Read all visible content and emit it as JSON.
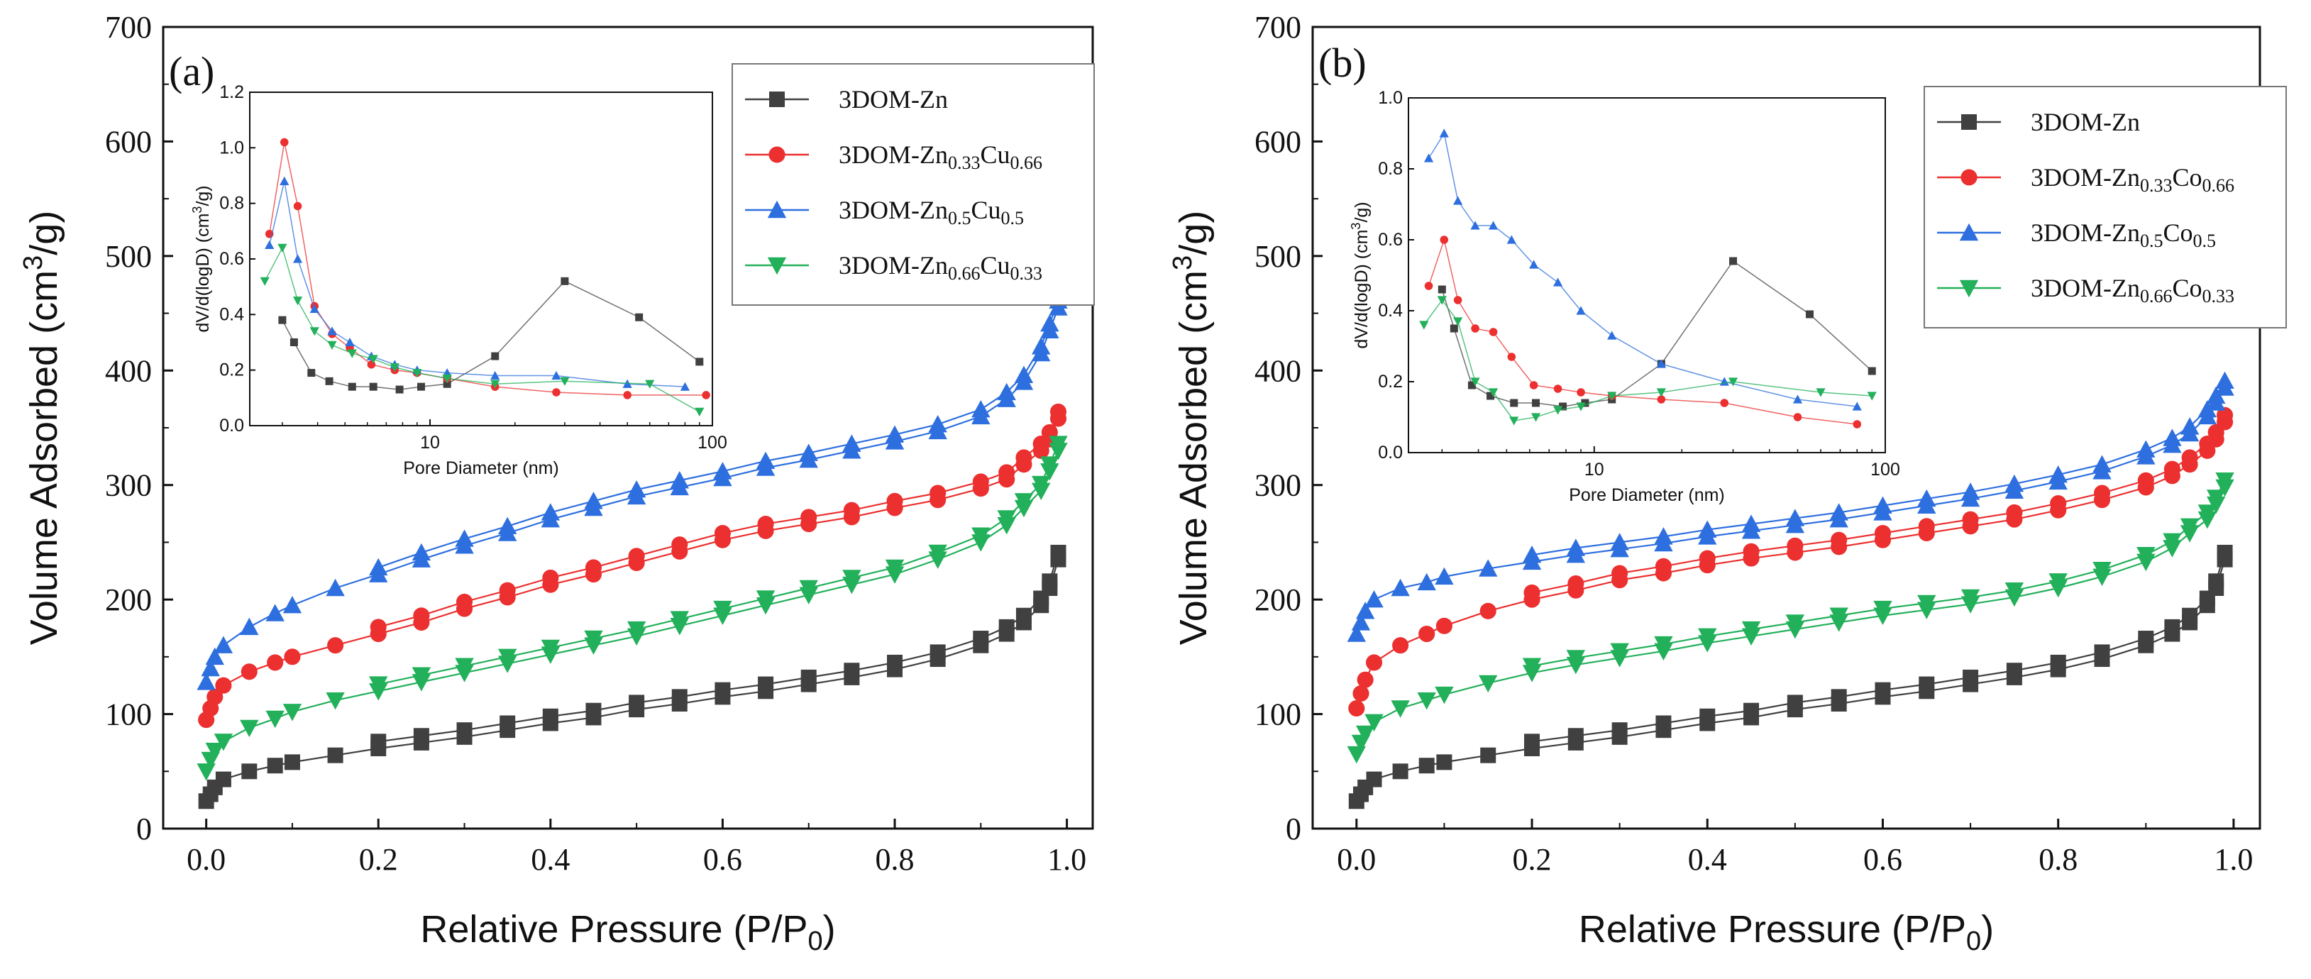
{
  "chart_data": [
    {
      "type": "line",
      "panel_label": "(a)",
      "xlabel": "Relative Pressure (P/P",
      "xlabel_sub": "0",
      "xlabel_end": ")",
      "ylabel": "Volume Adsorbed (cm",
      "ylabel_sup": "3",
      "ylabel_end": "/g)",
      "xlim": [
        -0.05,
        1.03
      ],
      "ylim": [
        0,
        700
      ],
      "xticks": [
        "0.0",
        "0.2",
        "0.4",
        "0.6",
        "0.8",
        "1.0"
      ],
      "yticks": [
        "0",
        "100",
        "200",
        "300",
        "400",
        "500",
        "600",
        "700"
      ],
      "legend_position": "top-right",
      "series": [
        {
          "name": "3DOM-Zn",
          "label_main": "3DOM-Zn",
          "sub1": "",
          "mid": "",
          "sub2": "",
          "color": "#404040",
          "marker": "square",
          "x": [
            0.0,
            0.005,
            0.01,
            0.02,
            0.05,
            0.08,
            0.1,
            0.15,
            0.2,
            0.25,
            0.3,
            0.35,
            0.4,
            0.45,
            0.5,
            0.55,
            0.6,
            0.65,
            0.7,
            0.75,
            0.8,
            0.85,
            0.9,
            0.93,
            0.95,
            0.97,
            0.98,
            0.99
          ],
          "y": [
            24,
            30,
            36,
            43,
            50,
            55,
            58,
            64,
            70,
            75,
            80,
            86,
            92,
            97,
            104,
            109,
            115,
            120,
            126,
            132,
            139,
            148,
            160,
            170,
            180,
            195,
            210,
            235
          ]
        },
        {
          "name": "3DOM-Zn0.33Cu0.66",
          "label_main": "3DOM-Zn",
          "sub1": "0.33",
          "mid": "Cu",
          "sub2": "0.66",
          "color": "#ec2f2f",
          "marker": "circle",
          "x": [
            0.0,
            0.005,
            0.01,
            0.02,
            0.05,
            0.08,
            0.1,
            0.15,
            0.2,
            0.25,
            0.3,
            0.35,
            0.4,
            0.45,
            0.5,
            0.55,
            0.6,
            0.65,
            0.7,
            0.75,
            0.8,
            0.85,
            0.9,
            0.93,
            0.95,
            0.97,
            0.98,
            0.99
          ],
          "y": [
            95,
            105,
            115,
            125,
            137,
            145,
            150,
            160,
            170,
            180,
            192,
            202,
            213,
            222,
            232,
            242,
            252,
            260,
            266,
            272,
            280,
            287,
            297,
            305,
            318,
            330,
            340,
            358
          ]
        },
        {
          "name": "3DOM-Zn0.5Cu0.5",
          "label_main": "3DOM-Zn",
          "sub1": "0.5",
          "mid": "Cu",
          "sub2": "0.5",
          "color": "#2e6fdf",
          "marker": "triangle-up",
          "x": [
            0.0,
            0.005,
            0.01,
            0.02,
            0.05,
            0.08,
            0.1,
            0.15,
            0.2,
            0.25,
            0.3,
            0.35,
            0.4,
            0.45,
            0.5,
            0.55,
            0.6,
            0.65,
            0.7,
            0.75,
            0.8,
            0.85,
            0.9,
            0.93,
            0.95,
            0.97,
            0.98,
            0.99
          ],
          "y": [
            128,
            140,
            150,
            160,
            176,
            188,
            195,
            210,
            222,
            235,
            247,
            258,
            270,
            280,
            290,
            298,
            306,
            315,
            322,
            330,
            338,
            347,
            360,
            375,
            390,
            415,
            435,
            455
          ]
        },
        {
          "name": "3DOM-Zn0.66Cu0.33",
          "label_main": "3DOM-Zn",
          "sub1": "0.66",
          "mid": "Cu",
          "sub2": "0.33",
          "color": "#22b05a",
          "marker": "triangle-down",
          "x": [
            0.0,
            0.005,
            0.01,
            0.02,
            0.05,
            0.08,
            0.1,
            0.15,
            0.2,
            0.25,
            0.3,
            0.35,
            0.4,
            0.45,
            0.5,
            0.55,
            0.6,
            0.65,
            0.7,
            0.75,
            0.8,
            0.85,
            0.9,
            0.93,
            0.95,
            0.97,
            0.98,
            0.99
          ],
          "y": [
            50,
            60,
            68,
            76,
            88,
            96,
            102,
            112,
            120,
            128,
            136,
            144,
            152,
            160,
            168,
            177,
            186,
            195,
            204,
            213,
            222,
            235,
            250,
            265,
            280,
            295,
            312,
            330
          ]
        }
      ],
      "inset": {
        "xlabel": "Pore Diameter (nm)",
        "ylabel": "dV/d(logD) (cm",
        "ylabel_sup": "3",
        "ylabel_end": "/g)",
        "xscale": "log",
        "xlim": [
          2.3,
          100
        ],
        "ylim": [
          0,
          1.2
        ],
        "xticks": [
          "10",
          "100"
        ],
        "yticks": [
          "0.0",
          "0.2",
          "0.4",
          "0.6",
          "0.8",
          "1.0",
          "1.2"
        ],
        "series": [
          {
            "name": "3DOM-Zn",
            "color": "#404040",
            "marker": "square",
            "x": [
              3.0,
              3.3,
              3.8,
              4.4,
              5.3,
              6.3,
              7.8,
              9.3,
              11.5,
              17,
              30,
              55,
              90
            ],
            "y": [
              0.38,
              0.3,
              0.19,
              0.16,
              0.14,
              0.14,
              0.13,
              0.14,
              0.15,
              0.25,
              0.52,
              0.39,
              0.23
            ]
          },
          {
            "name": "3DOM-Zn0.33Cu0.66",
            "color": "#ec2f2f",
            "marker": "circle",
            "x": [
              2.7,
              3.05,
              3.4,
              3.9,
              4.5,
              5.2,
              6.2,
              7.5,
              9,
              11.5,
              17,
              28,
              50,
              95
            ],
            "y": [
              0.69,
              1.02,
              0.79,
              0.43,
              0.33,
              0.28,
              0.22,
              0.2,
              0.19,
              0.17,
              0.14,
              0.12,
              0.11,
              0.11
            ]
          },
          {
            "name": "3DOM-Zn0.5Cu0.5",
            "color": "#2e6fdf",
            "marker": "triangle-up",
            "x": [
              2.7,
              3.05,
              3.4,
              3.9,
              4.5,
              5.2,
              6.2,
              7.5,
              9,
              11.5,
              17,
              28,
              50,
              80
            ],
            "y": [
              0.65,
              0.88,
              0.6,
              0.42,
              0.34,
              0.3,
              0.25,
              0.22,
              0.2,
              0.19,
              0.18,
              0.18,
              0.15,
              0.14
            ]
          },
          {
            "name": "3DOM-Zn0.66Cu0.33",
            "color": "#22b05a",
            "marker": "triangle-down",
            "x": [
              2.6,
              3.0,
              3.4,
              3.9,
              4.5,
              5.3,
              6.3,
              7.5,
              9,
              11.5,
              17,
              30,
              60,
              90
            ],
            "y": [
              0.52,
              0.64,
              0.45,
              0.34,
              0.29,
              0.26,
              0.24,
              0.21,
              0.19,
              0.17,
              0.15,
              0.16,
              0.15,
              0.05
            ]
          }
        ]
      }
    },
    {
      "type": "line",
      "panel_label": "(b)",
      "xlabel": "Relative Pressure (P/P",
      "xlabel_sub": "0",
      "xlabel_end": ")",
      "ylabel": "Volume Adsorbed (cm",
      "ylabel_sup": "3",
      "ylabel_end": "/g)",
      "xlim": [
        -0.05,
        1.03
      ],
      "ylim": [
        0,
        700
      ],
      "xticks": [
        "0.0",
        "0.2",
        "0.4",
        "0.6",
        "0.8",
        "1.0"
      ],
      "yticks": [
        "0",
        "100",
        "200",
        "300",
        "400",
        "500",
        "600",
        "700"
      ],
      "legend_position": "top-right",
      "series": [
        {
          "name": "3DOM-Zn",
          "label_main": "3DOM-Zn",
          "sub1": "",
          "mid": "",
          "sub2": "",
          "color": "#404040",
          "marker": "square",
          "x": [
            0.0,
            0.005,
            0.01,
            0.02,
            0.05,
            0.08,
            0.1,
            0.15,
            0.2,
            0.25,
            0.3,
            0.35,
            0.4,
            0.45,
            0.5,
            0.55,
            0.6,
            0.65,
            0.7,
            0.75,
            0.8,
            0.85,
            0.9,
            0.93,
            0.95,
            0.97,
            0.98,
            0.99
          ],
          "y": [
            24,
            30,
            36,
            43,
            50,
            55,
            58,
            64,
            70,
            75,
            80,
            86,
            92,
            97,
            104,
            109,
            115,
            120,
            126,
            132,
            139,
            148,
            160,
            170,
            180,
            195,
            210,
            235
          ]
        },
        {
          "name": "3DOM-Zn0.33Co0.66",
          "label_main": "3DOM-Zn",
          "sub1": "0.33",
          "mid": "Co",
          "sub2": "0.66",
          "color": "#ec2f2f",
          "marker": "circle",
          "x": [
            0.0,
            0.005,
            0.01,
            0.02,
            0.05,
            0.08,
            0.1,
            0.15,
            0.2,
            0.25,
            0.3,
            0.35,
            0.4,
            0.45,
            0.5,
            0.55,
            0.6,
            0.65,
            0.7,
            0.75,
            0.8,
            0.85,
            0.9,
            0.93,
            0.95,
            0.97,
            0.98,
            0.99
          ],
          "y": [
            105,
            118,
            130,
            145,
            160,
            170,
            177,
            190,
            200,
            208,
            217,
            223,
            230,
            236,
            241,
            246,
            252,
            258,
            264,
            270,
            278,
            287,
            298,
            308,
            318,
            330,
            340,
            355
          ]
        },
        {
          "name": "3DOM-Zn0.5Co0.5",
          "label_main": "3DOM-Zn",
          "sub1": "0.5",
          "mid": "Co",
          "sub2": "0.5",
          "color": "#2e6fdf",
          "marker": "triangle-up",
          "x": [
            0.0,
            0.005,
            0.01,
            0.02,
            0.05,
            0.08,
            0.1,
            0.15,
            0.2,
            0.25,
            0.3,
            0.35,
            0.4,
            0.45,
            0.5,
            0.55,
            0.6,
            0.65,
            0.7,
            0.75,
            0.8,
            0.85,
            0.9,
            0.93,
            0.95,
            0.97,
            0.98,
            0.99
          ],
          "y": [
            170,
            180,
            190,
            200,
            210,
            215,
            220,
            227,
            233,
            239,
            244,
            249,
            255,
            260,
            265,
            270,
            276,
            282,
            288,
            295,
            303,
            312,
            325,
            335,
            345,
            360,
            372,
            385
          ]
        },
        {
          "name": "3DOM-Zn0.66Co0.33",
          "label_main": "3DOM-Zn",
          "sub1": "0.66",
          "mid": "Co",
          "sub2": "0.33",
          "color": "#22b05a",
          "marker": "triangle-down",
          "x": [
            0.0,
            0.005,
            0.01,
            0.02,
            0.05,
            0.08,
            0.1,
            0.15,
            0.2,
            0.25,
            0.3,
            0.35,
            0.4,
            0.45,
            0.5,
            0.55,
            0.6,
            0.65,
            0.7,
            0.75,
            0.8,
            0.85,
            0.9,
            0.93,
            0.95,
            0.97,
            0.98,
            0.99
          ],
          "y": [
            65,
            75,
            83,
            93,
            105,
            112,
            117,
            127,
            136,
            143,
            149,
            155,
            162,
            168,
            174,
            180,
            186,
            191,
            196,
            202,
            210,
            220,
            233,
            245,
            258,
            270,
            283,
            298
          ]
        }
      ],
      "inset": {
        "xlabel": "Pore Diameter (nm)",
        "ylabel": "dV/d(logD) (cm",
        "ylabel_sup": "3",
        "ylabel_end": "/g)",
        "xscale": "log",
        "xlim": [
          2.3,
          100
        ],
        "ylim": [
          0,
          1.0
        ],
        "xticks": [
          "10",
          "100"
        ],
        "yticks": [
          "0.0",
          "0.2",
          "0.4",
          "0.6",
          "0.8",
          "1.0"
        ],
        "series": [
          {
            "name": "3DOM-Zn",
            "color": "#404040",
            "marker": "square",
            "x": [
              3.0,
              3.3,
              3.8,
              4.4,
              5.3,
              6.3,
              7.8,
              9.3,
              11.5,
              17,
              30,
              55,
              90
            ],
            "y": [
              0.46,
              0.35,
              0.19,
              0.16,
              0.14,
              0.14,
              0.13,
              0.14,
              0.15,
              0.25,
              0.54,
              0.39,
              0.23
            ]
          },
          {
            "name": "3DOM-Zn0.33Co0.66",
            "color": "#ec2f2f",
            "marker": "circle",
            "x": [
              2.7,
              3.05,
              3.4,
              3.9,
              4.5,
              5.2,
              6.2,
              7.5,
              9,
              11.5,
              17,
              28,
              50,
              80
            ],
            "y": [
              0.47,
              0.6,
              0.43,
              0.35,
              0.34,
              0.27,
              0.19,
              0.18,
              0.17,
              0.16,
              0.15,
              0.14,
              0.1,
              0.08
            ]
          },
          {
            "name": "3DOM-Zn0.5Co0.5",
            "color": "#2e6fdf",
            "marker": "triangle-up",
            "x": [
              2.7,
              3.05,
              3.4,
              3.9,
              4.5,
              5.2,
              6.2,
              7.5,
              9,
              11.5,
              17,
              28,
              50,
              80
            ],
            "y": [
              0.83,
              0.9,
              0.71,
              0.64,
              0.64,
              0.6,
              0.53,
              0.48,
              0.4,
              0.33,
              0.25,
              0.2,
              0.15,
              0.13
            ]
          },
          {
            "name": "3DOM-Zn0.66Co0.33",
            "color": "#22b05a",
            "marker": "triangle-down",
            "x": [
              2.6,
              3.0,
              3.4,
              3.9,
              4.5,
              5.3,
              6.3,
              7.5,
              9,
              11.5,
              17,
              30,
              60,
              90
            ],
            "y": [
              0.36,
              0.43,
              0.37,
              0.2,
              0.17,
              0.09,
              0.1,
              0.12,
              0.13,
              0.16,
              0.17,
              0.2,
              0.17,
              0.16
            ]
          }
        ]
      }
    }
  ]
}
